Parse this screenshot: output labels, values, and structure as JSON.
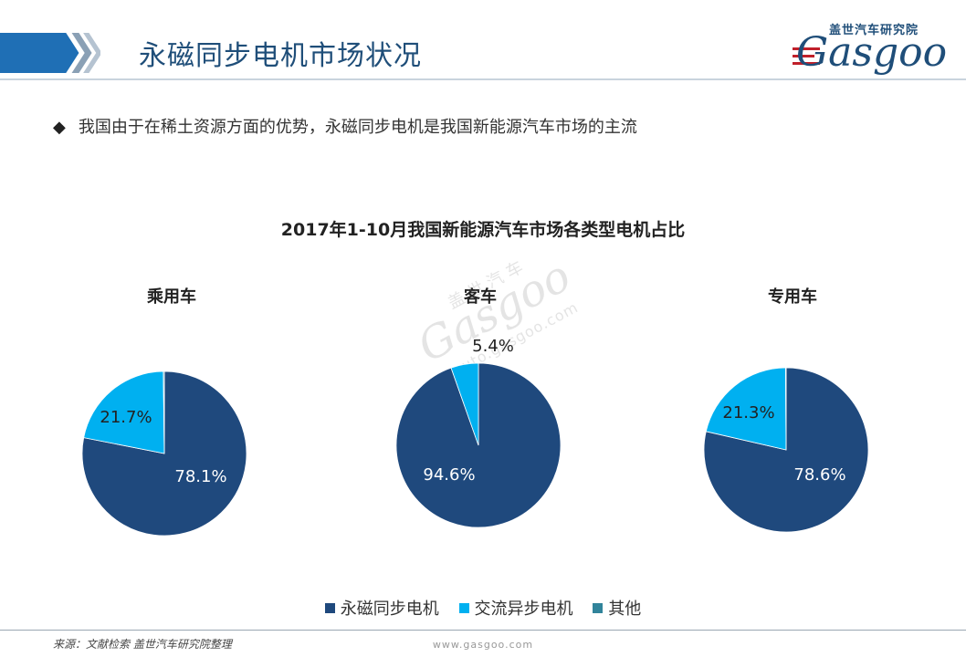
{
  "header": {
    "title": "永磁同步电机市场状况",
    "accent_color": "#1f4e79"
  },
  "logo": {
    "cn_text": "盖世汽车研究院",
    "en_text": "Gasgoo",
    "brand_color": "#1f4e79",
    "stripe_color": "#c0202a"
  },
  "bullet": {
    "icon": "diamond-bullet",
    "text": "我国由于在稀土资源方面的优势，永磁同步电机是我国新能源汽车市场的主流"
  },
  "watermark": {
    "cn": "盖世汽车",
    "en": "Gasgoo",
    "url": "auto.gasgoo.com"
  },
  "chart_data": {
    "type": "pie",
    "title": "2017年1-10月我国新能源汽车市场各类型电机占比",
    "legend": {
      "placement": "bottom",
      "entries": [
        "永磁同步电机",
        "交流异步电机",
        "其他"
      ]
    },
    "colors": [
      "#1f497d",
      "#00b0f0",
      "#31849b"
    ],
    "pies": [
      {
        "name": "乘用车",
        "values": [
          78.1,
          21.7,
          0.2
        ],
        "labels": [
          "78.1%",
          "21.7%",
          ""
        ]
      },
      {
        "name": "客车",
        "values": [
          94.6,
          5.4,
          0
        ],
        "labels": [
          "94.6%",
          "5.4%",
          ""
        ]
      },
      {
        "name": "专用车",
        "values": [
          78.6,
          21.3,
          0.1
        ],
        "labels": [
          "78.6%",
          "21.3%",
          ""
        ]
      }
    ]
  },
  "footer": {
    "source": "来源：文献检索 盖世汽车研究院整理",
    "url": "www.gasgoo.com"
  }
}
